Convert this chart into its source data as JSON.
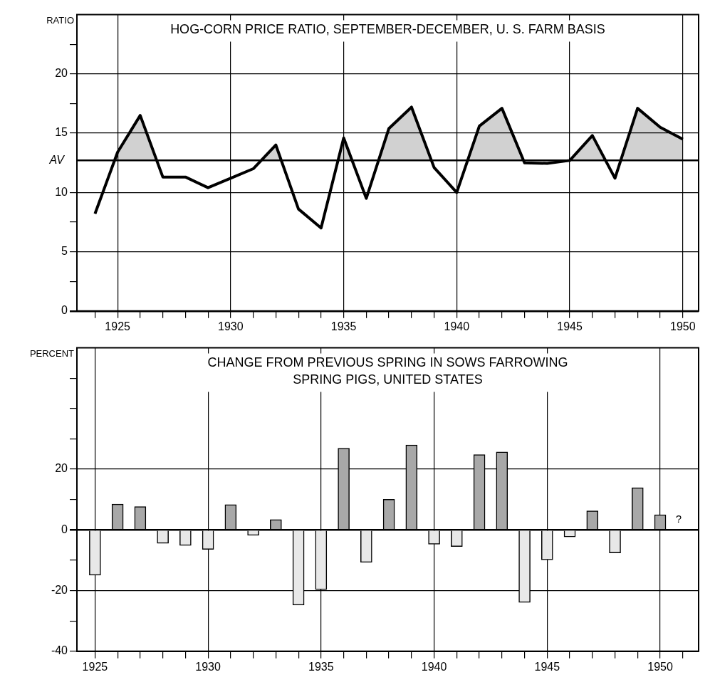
{
  "chart_data": [
    {
      "type": "area",
      "title": "HOG-CORN PRICE RATIO, SEPTEMBER-DECEMBER, U. S. FARM BASIS",
      "ylabel": "RATIO",
      "x": [
        1924,
        1925,
        1926,
        1927,
        1928,
        1929,
        1930,
        1931,
        1932,
        1933,
        1934,
        1935,
        1936,
        1937,
        1938,
        1939,
        1940,
        1941,
        1942,
        1943,
        1944,
        1945,
        1946,
        1947,
        1948,
        1949,
        1950
      ],
      "series": [
        {
          "color": "#000000",
          "values": [
            8.2,
            13.4,
            16.5,
            11.3,
            11.3,
            10.4,
            11.2,
            12.0,
            14.0,
            8.6,
            7.0,
            14.6,
            9.5,
            15.4,
            17.2,
            12.1,
            10.0,
            15.6,
            17.1,
            12.5,
            12.45,
            12.7,
            14.8,
            11.2,
            17.1,
            15.5,
            14.5
          ]
        }
      ],
      "xlim": [
        1923.2,
        1950.7
      ],
      "ylim": [
        0,
        25
      ],
      "xticks": [
        {
          "value": 1924,
          "label": null
        },
        1925,
        {
          "value": 1926,
          "label": null
        },
        {
          "value": 1927,
          "label": null
        },
        {
          "value": 1928,
          "label": null
        },
        {
          "value": 1929,
          "label": null
        },
        1930,
        {
          "value": 1931,
          "label": null
        },
        {
          "value": 1932,
          "label": null
        },
        {
          "value": 1933,
          "label": null
        },
        {
          "value": 1934,
          "label": null
        },
        1935,
        {
          "value": 1936,
          "label": null
        },
        {
          "value": 1937,
          "label": null
        },
        {
          "value": 1938,
          "label": null
        },
        {
          "value": 1939,
          "label": null
        },
        1940,
        {
          "value": 1941,
          "label": null
        },
        {
          "value": 1942,
          "label": null
        },
        {
          "value": 1943,
          "label": null
        },
        {
          "value": 1944,
          "label": null
        },
        1945,
        {
          "value": 1946,
          "label": null
        },
        {
          "value": 1947,
          "label": null
        },
        {
          "value": 1948,
          "label": null
        },
        {
          "value": 1949,
          "label": null
        },
        1950
      ],
      "yticks": [
        0,
        {
          "value": 2.5,
          "label": null
        },
        5,
        {
          "value": 7.5,
          "label": null
        },
        10,
        15,
        {
          "value": 17.5,
          "label": null
        },
        20,
        {
          "value": 22.5,
          "label": null
        }
      ],
      "ref_lines": [
        {
          "axis": "y",
          "value": 12.7,
          "label": "AV",
          "color": "#000000"
        }
      ],
      "grid": true
    },
    {
      "type": "bar",
      "title": "CHANGE FROM PREVIOUS SPRING IN SOWS FARROWING SPRING PIGS, UNITED STATES",
      "ylabel": "PERCENT",
      "x": [
        1925,
        1926,
        1927,
        1928,
        1929,
        1930,
        1931,
        1932,
        1933,
        1934,
        1935,
        1936,
        1937,
        1938,
        1939,
        1940,
        1941,
        1942,
        1943,
        1944,
        1945,
        1946,
        1947,
        1948,
        1949,
        1950
      ],
      "values": [
        -14.9,
        8.5,
        7.7,
        -4.4,
        -5.1,
        -6.4,
        8.3,
        -1.8,
        3.4,
        -24.8,
        -19.7,
        26.9,
        -10.7,
        10.1,
        28.0,
        -4.7,
        -5.5,
        24.8,
        25.7,
        -23.9,
        -9.9,
        -2.3,
        6.3,
        -7.6,
        13.9,
        5.0
      ],
      "colors": [
        "#e8e8e8",
        "#a8a8a8",
        "#a8a8a8",
        "#e8e8e8",
        "#e8e8e8",
        "#e8e8e8",
        "#a8a8a8",
        "#e8e8e8",
        "#a8a8a8",
        "#e8e8e8",
        "#e8e8e8",
        "#a8a8a8",
        "#e8e8e8",
        "#a8a8a8",
        "#a8a8a8",
        "#e8e8e8",
        "#e8e8e8",
        "#a8a8a8",
        "#a8a8a8",
        "#e8e8e8",
        "#e8e8e8",
        "#e8e8e8",
        "#a8a8a8",
        "#e8e8e8",
        "#a8a8a8",
        "#a8a8a8"
      ],
      "xlim": [
        1924.2,
        1951.7
      ],
      "ylim": [
        -40,
        60
      ],
      "xticks": [
        1925,
        {
          "value": 1926,
          "label": null
        },
        {
          "value": 1927,
          "label": null
        },
        {
          "value": 1928,
          "label": null
        },
        {
          "value": 1929,
          "label": null
        },
        1930,
        {
          "value": 1931,
          "label": null
        },
        {
          "value": 1932,
          "label": null
        },
        {
          "value": 1933,
          "label": null
        },
        {
          "value": 1934,
          "label": null
        },
        1935,
        {
          "value": 1936,
          "label": null
        },
        {
          "value": 1937,
          "label": null
        },
        {
          "value": 1938,
          "label": null
        },
        {
          "value": 1939,
          "label": null
        },
        1940,
        {
          "value": 1941,
          "label": null
        },
        {
          "value": 1942,
          "label": null
        },
        {
          "value": 1943,
          "label": null
        },
        {
          "value": 1944,
          "label": null
        },
        1945,
        {
          "value": 1946,
          "label": null
        },
        {
          "value": 1947,
          "label": null
        },
        {
          "value": 1948,
          "label": null
        },
        {
          "value": 1949,
          "label": null
        },
        1950,
        {
          "value": 1951,
          "label": null
        }
      ],
      "yticks": [
        -40,
        {
          "value": -30,
          "label": null
        },
        -20,
        {
          "value": -10,
          "label": null
        },
        0,
        {
          "value": 10,
          "label": null
        },
        20,
        {
          "value": 30,
          "label": null
        },
        {
          "value": 40,
          "label": null
        },
        {
          "value": 50,
          "label": null
        }
      ],
      "annotations": [
        "?"
      ],
      "grid": true
    }
  ]
}
